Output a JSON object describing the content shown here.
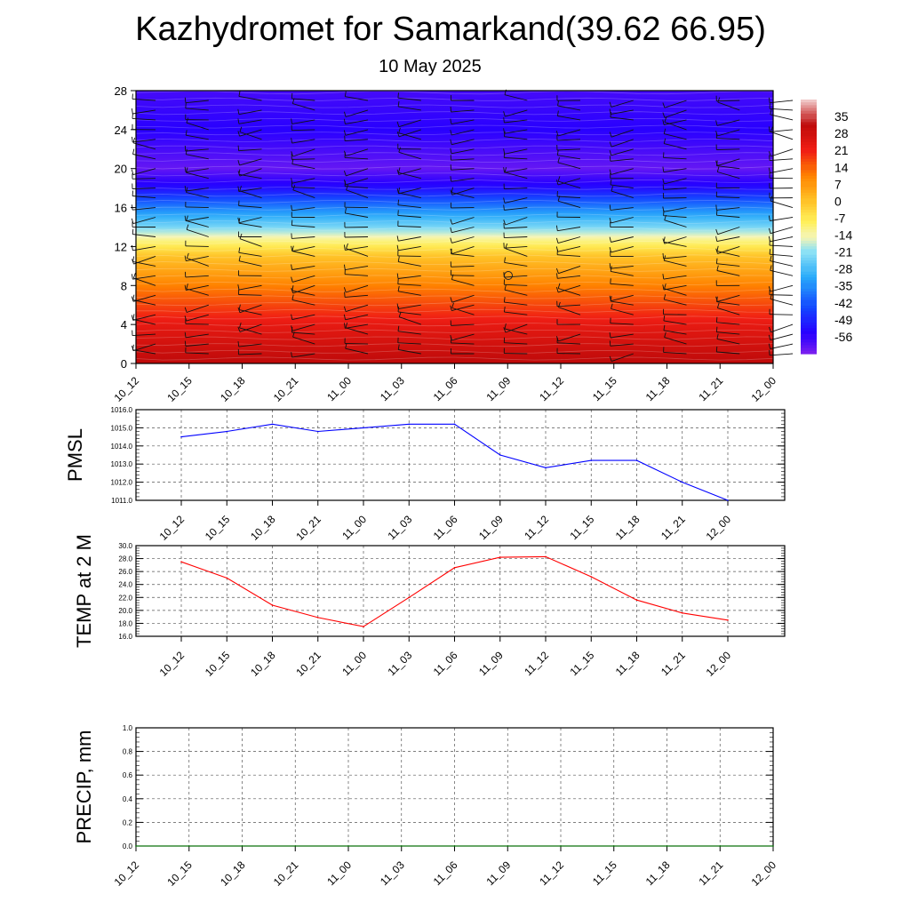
{
  "page": {
    "title": "Kazhydromet for Samarkand(39.62 66.95)",
    "subtitle": "10 May 2025"
  },
  "colors": {
    "pmsl_line": "#0000ff",
    "temp_line": "#ff0000",
    "precip_line": "#008000",
    "grid": "#555555"
  },
  "chart_data": [
    {
      "type": "heatmap",
      "title": "",
      "categories": [
        "10_12",
        "10_15",
        "10_18",
        "10_21",
        "11_00",
        "11_03",
        "11_06",
        "11_09",
        "11_12",
        "11_15",
        "11_18",
        "11_21",
        "12_00"
      ],
      "yticks": [
        0,
        4,
        8,
        12,
        16,
        20,
        24,
        28
      ],
      "ylim": [
        0,
        28
      ],
      "colorbar_labels": [
        "35",
        "28",
        "21",
        "14",
        "7",
        "0",
        "-7",
        "-14",
        "-21",
        "-28",
        "-35",
        "-42",
        "-49",
        "-56"
      ],
      "colorbar_range": [
        -60,
        40
      ],
      "field_profile": [
        {
          "level": 0,
          "value": 30
        },
        {
          "level": 4,
          "value": 22
        },
        {
          "level": 8,
          "value": 10
        },
        {
          "level": 11,
          "value": 0
        },
        {
          "level": 12.5,
          "value": -10
        },
        {
          "level": 14,
          "value": -22
        },
        {
          "level": 16,
          "value": -35
        },
        {
          "level": 18,
          "value": -50
        },
        {
          "level": 20,
          "value": -58
        },
        {
          "level": 24,
          "value": -52
        },
        {
          "level": 28,
          "value": -55
        }
      ],
      "wind_barb_levels": [
        1,
        2,
        3,
        4,
        5,
        6,
        7,
        8,
        9,
        10,
        11,
        12,
        13,
        14,
        15,
        16,
        17,
        18,
        19,
        20,
        21,
        22,
        23,
        24,
        25,
        26,
        27
      ],
      "grid": false
    },
    {
      "type": "line",
      "ylabel": "PMSL",
      "categories": [
        "10_12",
        "10_15",
        "10_18",
        "10_21",
        "11_00",
        "11_03",
        "11_06",
        "11_09",
        "11_12",
        "11_15",
        "11_18",
        "11_21",
        "12_00"
      ],
      "values": [
        1014.5,
        1014.8,
        1015.2,
        1014.8,
        1015.0,
        1015.2,
        1015.2,
        1013.5,
        1012.8,
        1013.2,
        1013.2,
        1012.0,
        1011.0
      ],
      "ylim": [
        1011.0,
        1016.0
      ],
      "yticks": [
        "1011.0",
        "1012.0",
        "1013.0",
        "1014.0",
        "1015.0",
        "1016.0"
      ],
      "grid": true
    },
    {
      "type": "line",
      "ylabel": "TEMP at 2 M",
      "categories": [
        "10_12",
        "10_15",
        "10_18",
        "10_21",
        "11_00",
        "11_03",
        "11_06",
        "11_09",
        "11_12",
        "11_15",
        "11_18",
        "11_21",
        "12_00"
      ],
      "values": [
        27.5,
        25.0,
        20.8,
        18.9,
        17.5,
        22.0,
        26.6,
        28.2,
        28.3,
        25.2,
        21.6,
        19.6,
        18.5
      ],
      "ylim": [
        16.0,
        30.0
      ],
      "yticks": [
        "16.0",
        "18.0",
        "20.0",
        "22.0",
        "24.0",
        "26.0",
        "28.0",
        "30.0"
      ],
      "grid": true
    },
    {
      "type": "line",
      "ylabel": "PRECIP, mm",
      "categories": [
        "10_12",
        "10_15",
        "10_18",
        "10_21",
        "11_00",
        "11_03",
        "11_06",
        "11_09",
        "11_12",
        "11_15",
        "11_18",
        "11_21",
        "12_00"
      ],
      "values": [
        0,
        0,
        0,
        0,
        0,
        0,
        0,
        0,
        0,
        0,
        0,
        0,
        0
      ],
      "ylim": [
        0.0,
        1.0
      ],
      "yticks": [
        "0.0",
        "0.2",
        "0.4",
        "0.6",
        "0.8",
        "1.0"
      ],
      "grid": true
    }
  ]
}
